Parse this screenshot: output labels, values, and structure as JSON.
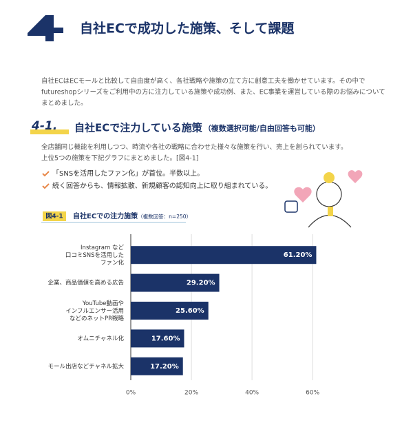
{
  "header": {
    "number": "4",
    "title": "自社ECで成功した施策、そして課題"
  },
  "intro": [
    "自社ECはECモールと比較して自由度が高く、各社戦略や施策の立て方に創意工夫を働かせています。その中で",
    "futureshopシリーズをご利用中の方に注力している施策や成功例、また、EC事業を運営している際のお悩みについて",
    "まとめました。"
  ],
  "section": {
    "number": "4-1.",
    "title": "自社ECで注力している施策",
    "subtitle": "（複数選択可能/自由回答も可能）",
    "description": [
      "全店舗同じ機能を利用しつつ、時流や各社の戦略に合わせた様々な施策を行い、売上を創られています。",
      "上位5つの施策を下記グラフにまとめました。[図4-1]"
    ],
    "bullets": [
      "「SNSを活用したファン化」が首位。半数以上。",
      "続く回答からも、情報拡散、新規顧客の認知向上に取り組まれている。"
    ]
  },
  "chart_data": {
    "type": "hbar",
    "label": "図4-1",
    "title": "自社ECでの注力施策",
    "subtitle": "（複数回答：n=250）",
    "categories": [
      "Instagram など\n口コミSNSを活用した\nファン化",
      "企業、商品価値を高める広告",
      "YouTube動画や\nインフルエンサー活用\nなどのネットPR戦略",
      "オムニチャネル化",
      "モール出店などチャネル拡大"
    ],
    "values": [
      61.2,
      29.2,
      25.6,
      17.6,
      17.2
    ],
    "value_labels": [
      "61.20%",
      "29.20%",
      "25.60%",
      "17.60%",
      "17.20%"
    ],
    "color": "#1b3368",
    "xlim": [
      0,
      72
    ],
    "xticks": [
      {
        "value": 0,
        "label": "0%"
      },
      {
        "value": 20,
        "label": "20%"
      },
      {
        "value": 40,
        "label": "40%"
      },
      {
        "value": 60,
        "label": "60%"
      }
    ],
    "grid": true
  }
}
